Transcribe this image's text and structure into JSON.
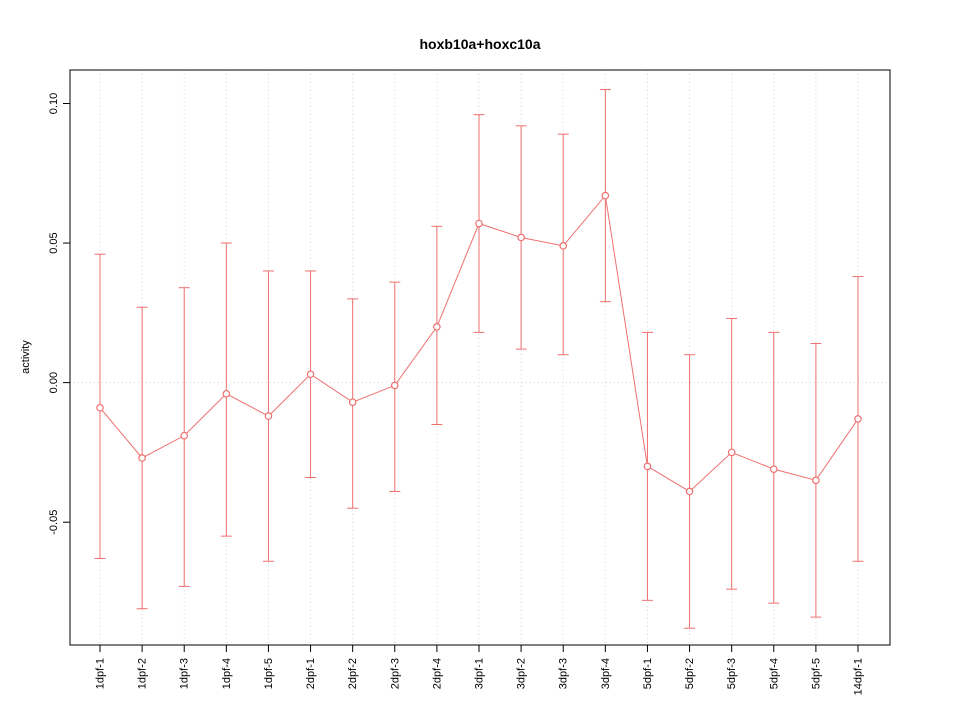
{
  "chart_data": {
    "type": "line",
    "title": "hoxb10a+hoxc10a",
    "xlabel": "",
    "ylabel": "activity",
    "categories": [
      "1dpf-1",
      "1dpf-2",
      "1dpf-3",
      "1dpf-4",
      "1dpf-5",
      "2dpf-1",
      "2dpf-2",
      "2dpf-3",
      "2dpf-4",
      "3dpf-1",
      "3dpf-2",
      "3dpf-3",
      "3dpf-4",
      "5dpf-1",
      "5dpf-2",
      "5dpf-3",
      "5dpf-4",
      "5dpf-5",
      "14dpf-1"
    ],
    "series": [
      {
        "name": "activity",
        "values": [
          -0.009,
          -0.027,
          -0.019,
          -0.004,
          -0.012,
          0.003,
          -0.007,
          -0.001,
          0.02,
          0.057,
          0.052,
          0.049,
          0.067,
          -0.03,
          -0.039,
          -0.025,
          -0.031,
          -0.035,
          -0.013
        ],
        "error_high": [
          0.046,
          0.027,
          0.034,
          0.05,
          0.04,
          0.04,
          0.03,
          0.036,
          0.056,
          0.096,
          0.092,
          0.089,
          0.105,
          0.018,
          0.01,
          0.023,
          0.018,
          0.014,
          0.038
        ],
        "error_low": [
          -0.063,
          -0.081,
          -0.073,
          -0.055,
          -0.064,
          -0.034,
          -0.045,
          -0.039,
          -0.015,
          0.018,
          0.012,
          0.01,
          0.029,
          -0.078,
          -0.088,
          -0.074,
          -0.079,
          -0.084,
          -0.064
        ]
      }
    ],
    "ylim": [
      -0.094,
      0.112
    ],
    "yticks": [
      0.1,
      0.05,
      0.0,
      -0.05
    ],
    "ytick_labels": [
      "0.10",
      "0.05",
      "0.00",
      "-0.05"
    ],
    "grid": "dotted vertical line at each category; dotted horizontal line at y=0",
    "legend": "none",
    "marker": "open-circle",
    "colors": {
      "series": "#ef6f6f",
      "grid": "#d4d4d4",
      "box": "#000000",
      "background": "#ffffff"
    }
  }
}
